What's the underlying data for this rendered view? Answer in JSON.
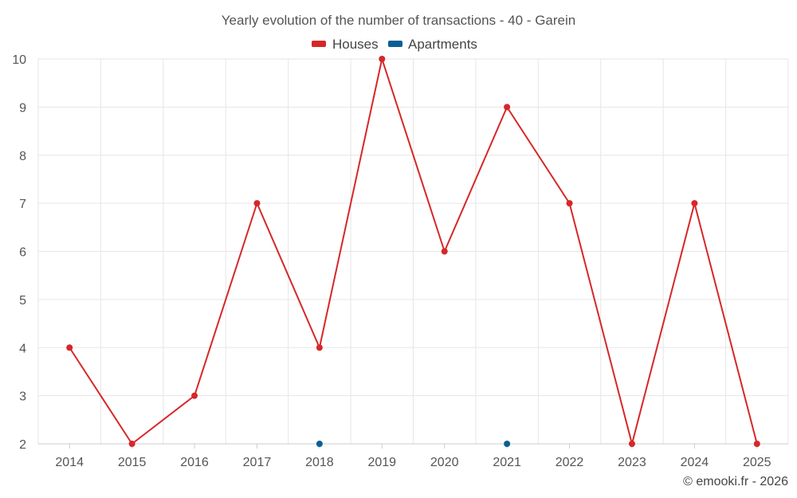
{
  "chart_data": {
    "type": "line",
    "title": "Yearly evolution of the number of transactions - 40 - Garein",
    "categories": [
      "2014",
      "2015",
      "2016",
      "2017",
      "2018",
      "2019",
      "2020",
      "2021",
      "2022",
      "2023",
      "2024",
      "2025"
    ],
    "series": [
      {
        "name": "Houses",
        "color": "#d62728",
        "values": [
          4,
          2,
          3,
          7,
          4,
          10,
          6,
          9,
          7,
          2,
          7,
          2
        ],
        "line": true
      },
      {
        "name": "Apartments",
        "color": "#0b5f94",
        "values": [
          null,
          null,
          null,
          null,
          2,
          null,
          null,
          2,
          null,
          null,
          null,
          null
        ],
        "line": false
      }
    ],
    "y_ticks": [
      "2",
      "3",
      "4",
      "5",
      "6",
      "7",
      "8",
      "9",
      "10"
    ],
    "ylim": [
      2,
      10
    ],
    "xlabel": "",
    "ylabel": "",
    "grid": true,
    "legend_position": "top-center"
  },
  "credit": "© emooki.fr - 2026"
}
